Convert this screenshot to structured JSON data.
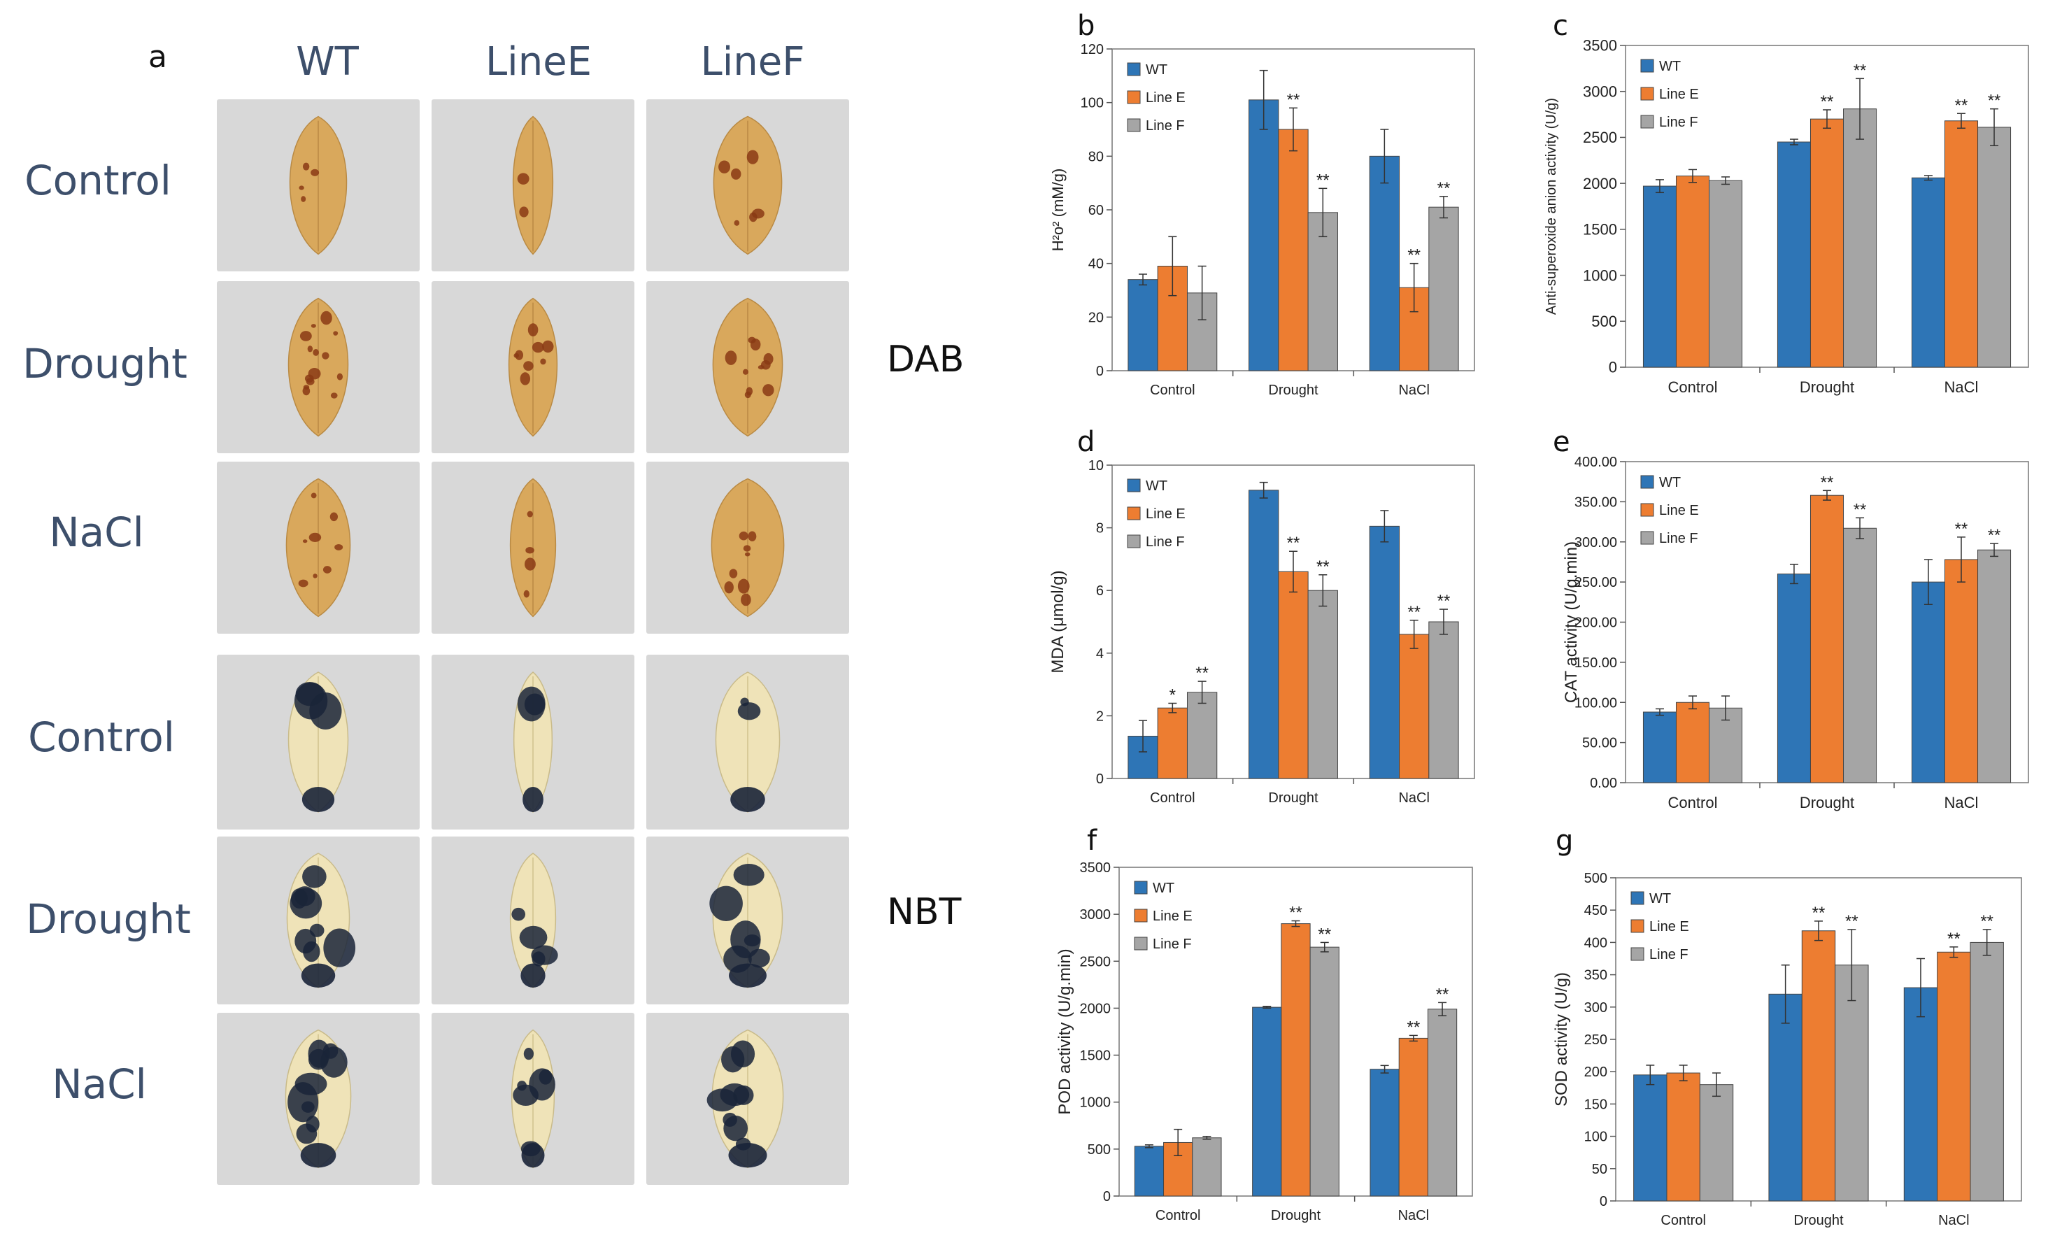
{
  "panel_a": {
    "letter": "a",
    "columns": [
      "WT",
      "LineE",
      "LineF"
    ],
    "rows": [
      "Control",
      "Drought",
      "NaCl",
      "Control",
      "Drought",
      "NaCl"
    ],
    "stains": [
      "DAB",
      "NBT"
    ],
    "colors": {
      "dab_leaf": "#d9a85c",
      "dab_spot": "#8a3a14",
      "nbt_leaf": "#efe3b8",
      "nbt_spot": "#1a2438",
      "background": "#d8d8d8"
    }
  },
  "colors": {
    "WT": "#2e75b6",
    "Line E": "#ed7d31",
    "Line F": "#a5a5a5"
  },
  "chart_data": [
    {
      "letter": "b",
      "type": "bar",
      "categories": [
        "Control",
        "Drought",
        "NaCl"
      ],
      "series": [
        {
          "name": "WT",
          "values": [
            34,
            101,
            80
          ],
          "errors": [
            2,
            11,
            10
          ],
          "sig": [
            "",
            "",
            ""
          ]
        },
        {
          "name": "Line E",
          "values": [
            39,
            90,
            31
          ],
          "errors": [
            11,
            8,
            9
          ],
          "sig": [
            "",
            "**",
            "**"
          ]
        },
        {
          "name": "Line F",
          "values": [
            29,
            59,
            61
          ],
          "errors": [
            10,
            9,
            4
          ],
          "sig": [
            "",
            "**",
            "**"
          ]
        }
      ],
      "ylabel": "H²o² (mM/g)",
      "ylim": [
        0,
        120
      ],
      "yticks": [
        0,
        20,
        40,
        60,
        80,
        100,
        120
      ],
      "legend": "top-left"
    },
    {
      "letter": "c",
      "type": "bar",
      "categories": [
        "Control",
        "Drought",
        "NaCl"
      ],
      "series": [
        {
          "name": "WT",
          "values": [
            1970,
            2450,
            2060
          ],
          "errors": [
            70,
            30,
            25
          ],
          "sig": [
            "",
            "",
            ""
          ]
        },
        {
          "name": "Line E",
          "values": [
            2080,
            2700,
            2680
          ],
          "errors": [
            70,
            100,
            80
          ],
          "sig": [
            "",
            "**",
            "**"
          ]
        },
        {
          "name": "Line F",
          "values": [
            2030,
            2810,
            2610
          ],
          "errors": [
            40,
            330,
            200
          ],
          "sig": [
            "",
            "**",
            "**"
          ]
        }
      ],
      "ylabel": "Anti-superoxide anion activity (U/g)",
      "ylim": [
        0,
        3500
      ],
      "yticks": [
        0,
        500,
        1000,
        1500,
        2000,
        2500,
        3000,
        3500
      ],
      "legend": "top-left"
    },
    {
      "letter": "d",
      "type": "bar",
      "categories": [
        "Control",
        "Drought",
        "NaCl"
      ],
      "series": [
        {
          "name": "WT",
          "values": [
            1.35,
            9.2,
            8.05
          ],
          "errors": [
            0.5,
            0.25,
            0.5
          ],
          "sig": [
            "",
            "",
            ""
          ]
        },
        {
          "name": "Line E",
          "values": [
            2.25,
            6.6,
            4.6
          ],
          "errors": [
            0.15,
            0.65,
            0.45
          ],
          "sig": [
            "*",
            "**",
            "**"
          ]
        },
        {
          "name": "Line F",
          "values": [
            2.75,
            6.0,
            5.0
          ],
          "errors": [
            0.35,
            0.5,
            0.4
          ],
          "sig": [
            "**",
            "**",
            "**"
          ]
        }
      ],
      "ylabel": "MDA (μmol/g)",
      "ylim": [
        0,
        10
      ],
      "yticks": [
        0,
        2,
        4,
        6,
        8,
        10
      ],
      "legend": "top-left"
    },
    {
      "letter": "e",
      "type": "bar",
      "categories": [
        "Control",
        "Drought",
        "NaCl"
      ],
      "series": [
        {
          "name": "WT",
          "values": [
            88,
            260,
            250
          ],
          "errors": [
            4,
            12,
            28
          ],
          "sig": [
            "",
            "",
            ""
          ]
        },
        {
          "name": "Line E",
          "values": [
            100,
            358,
            278
          ],
          "errors": [
            8,
            6,
            28
          ],
          "sig": [
            "",
            "**",
            "**"
          ]
        },
        {
          "name": "Line F",
          "values": [
            93,
            317,
            290
          ],
          "errors": [
            15,
            13,
            8
          ],
          "sig": [
            "",
            "**",
            "**"
          ]
        }
      ],
      "ylabel": "CAT activity (U/g.min)",
      "ylim": [
        0,
        400
      ],
      "yticks": [
        0,
        50,
        100,
        150,
        200,
        250,
        300,
        350,
        400
      ],
      "tickformat": "fixed2",
      "legend": "top-left"
    },
    {
      "letter": "f",
      "type": "bar",
      "categories": [
        "Control",
        "Drought",
        "NaCl"
      ],
      "series": [
        {
          "name": "WT",
          "values": [
            530,
            2010,
            1350
          ],
          "errors": [
            15,
            10,
            40
          ],
          "sig": [
            "",
            "",
            ""
          ]
        },
        {
          "name": "Line E",
          "values": [
            570,
            2900,
            1680
          ],
          "errors": [
            140,
            30,
            30
          ],
          "sig": [
            "",
            "**",
            "**"
          ]
        },
        {
          "name": "Line F",
          "values": [
            620,
            2650,
            1990
          ],
          "errors": [
            15,
            50,
            70
          ],
          "sig": [
            "",
            "**",
            "**"
          ]
        }
      ],
      "ylabel": "POD activity (U/g.min)",
      "ylim": [
        0,
        3500
      ],
      "yticks": [
        0,
        500,
        1000,
        1500,
        2000,
        2500,
        3000,
        3500
      ],
      "legend": "top-left"
    },
    {
      "letter": "g",
      "type": "bar",
      "categories": [
        "Control",
        "Drought",
        "NaCl"
      ],
      "series": [
        {
          "name": "WT",
          "values": [
            195,
            320,
            330
          ],
          "errors": [
            15,
            45,
            45
          ],
          "sig": [
            "",
            "",
            ""
          ]
        },
        {
          "name": "Line E",
          "values": [
            198,
            418,
            385
          ],
          "errors": [
            12,
            15,
            8
          ],
          "sig": [
            "",
            "**",
            "**"
          ]
        },
        {
          "name": "Line F",
          "values": [
            180,
            365,
            400
          ],
          "errors": [
            18,
            55,
            20
          ],
          "sig": [
            "",
            "**",
            "**"
          ]
        }
      ],
      "ylabel": "SOD activity (U/g)",
      "ylim": [
        0,
        500
      ],
      "yticks": [
        0,
        50,
        100,
        150,
        200,
        250,
        300,
        350,
        400,
        450,
        500
      ],
      "legend": "top-left"
    }
  ]
}
